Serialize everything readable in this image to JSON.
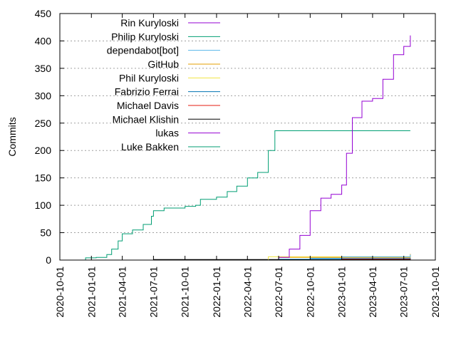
{
  "chart_data": {
    "type": "line",
    "title": "",
    "xlabel": "",
    "ylabel": "Commits",
    "ylim": [
      0,
      450
    ],
    "xlim": [
      "2020-10-01",
      "2023-10-01"
    ],
    "grid": true,
    "legend_position": "top-left",
    "y_ticks": [
      0,
      50,
      100,
      150,
      200,
      250,
      300,
      350,
      400,
      450
    ],
    "x_ticks": [
      "2020-10-01",
      "2021-01-01",
      "2021-04-01",
      "2021-07-01",
      "2021-10-01",
      "2022-01-01",
      "2022-04-01",
      "2022-07-01",
      "2022-10-01",
      "2023-01-01",
      "2023-04-01",
      "2023-07-01",
      "2023-10-01"
    ],
    "series": [
      {
        "name": "Rin Kuryloski",
        "color": "#9400d3",
        "points": [
          [
            "2022-06-15",
            0
          ],
          [
            "2022-07-01",
            5
          ],
          [
            "2022-08-01",
            20
          ],
          [
            "2022-09-01",
            45
          ],
          [
            "2022-10-01",
            90
          ],
          [
            "2022-11-01",
            113
          ],
          [
            "2022-12-01",
            120
          ],
          [
            "2023-01-01",
            137
          ],
          [
            "2023-01-15",
            195
          ],
          [
            "2023-02-01",
            260
          ],
          [
            "2023-03-01",
            290
          ],
          [
            "2023-04-01",
            295
          ],
          [
            "2023-05-01",
            330
          ],
          [
            "2023-06-01",
            375
          ],
          [
            "2023-07-01",
            390
          ],
          [
            "2023-07-20",
            410
          ]
        ]
      },
      {
        "name": "Philip Kuryloski",
        "color": "#009e73",
        "points": [
          [
            "2020-12-01",
            0
          ],
          [
            "2020-12-15",
            4
          ],
          [
            "2021-01-15",
            5
          ],
          [
            "2021-02-15",
            10
          ],
          [
            "2021-03-01",
            20
          ],
          [
            "2021-03-20",
            35
          ],
          [
            "2021-04-01",
            48
          ],
          [
            "2021-05-01",
            55
          ],
          [
            "2021-06-01",
            65
          ],
          [
            "2021-06-25",
            80
          ],
          [
            "2021-07-01",
            90
          ],
          [
            "2021-08-01",
            95
          ],
          [
            "2021-10-01",
            98
          ],
          [
            "2021-11-01",
            100
          ],
          [
            "2021-11-15",
            111
          ],
          [
            "2022-01-01",
            115
          ],
          [
            "2022-02-01",
            125
          ],
          [
            "2022-03-01",
            135
          ],
          [
            "2022-04-01",
            150
          ],
          [
            "2022-05-01",
            160
          ],
          [
            "2022-06-01",
            200
          ],
          [
            "2022-06-20",
            236
          ],
          [
            "2023-07-20",
            236
          ]
        ]
      },
      {
        "name": "dependabot[bot]",
        "color": "#56b4e9",
        "points": [
          [
            "2022-01-01",
            0
          ],
          [
            "2022-07-01",
            2
          ],
          [
            "2023-01-01",
            6
          ],
          [
            "2023-07-20",
            10
          ]
        ]
      },
      {
        "name": "GitHub",
        "color": "#e69f00",
        "points": [
          [
            "2021-07-01",
            0
          ],
          [
            "2022-07-01",
            5
          ],
          [
            "2023-07-20",
            11
          ]
        ]
      },
      {
        "name": "Phil Kuryloski",
        "color": "#f0e442",
        "points": [
          [
            "2022-01-01",
            0
          ],
          [
            "2022-06-01",
            6
          ],
          [
            "2023-07-20",
            7
          ]
        ]
      },
      {
        "name": "Fabrizio Ferrai",
        "color": "#0072b2",
        "points": [
          [
            "2022-04-01",
            0
          ],
          [
            "2022-10-01",
            3
          ],
          [
            "2023-07-20",
            4
          ]
        ]
      },
      {
        "name": "Michael Davis",
        "color": "#e51e10",
        "points": [
          [
            "2022-06-01",
            0
          ],
          [
            "2022-10-01",
            2
          ],
          [
            "2023-07-20",
            3
          ]
        ]
      },
      {
        "name": "Michael Klishin",
        "color": "#000000",
        "points": [
          [
            "2021-07-01",
            1
          ],
          [
            "2023-07-20",
            2
          ]
        ]
      },
      {
        "name": "lukas",
        "color": "#9400d3",
        "points": [
          [
            "2022-03-01",
            0
          ],
          [
            "2023-07-20",
            1
          ]
        ]
      },
      {
        "name": "Luke Bakken",
        "color": "#009e73",
        "points": [
          [
            "2022-05-01",
            0
          ],
          [
            "2023-07-20",
            1
          ]
        ]
      }
    ]
  }
}
